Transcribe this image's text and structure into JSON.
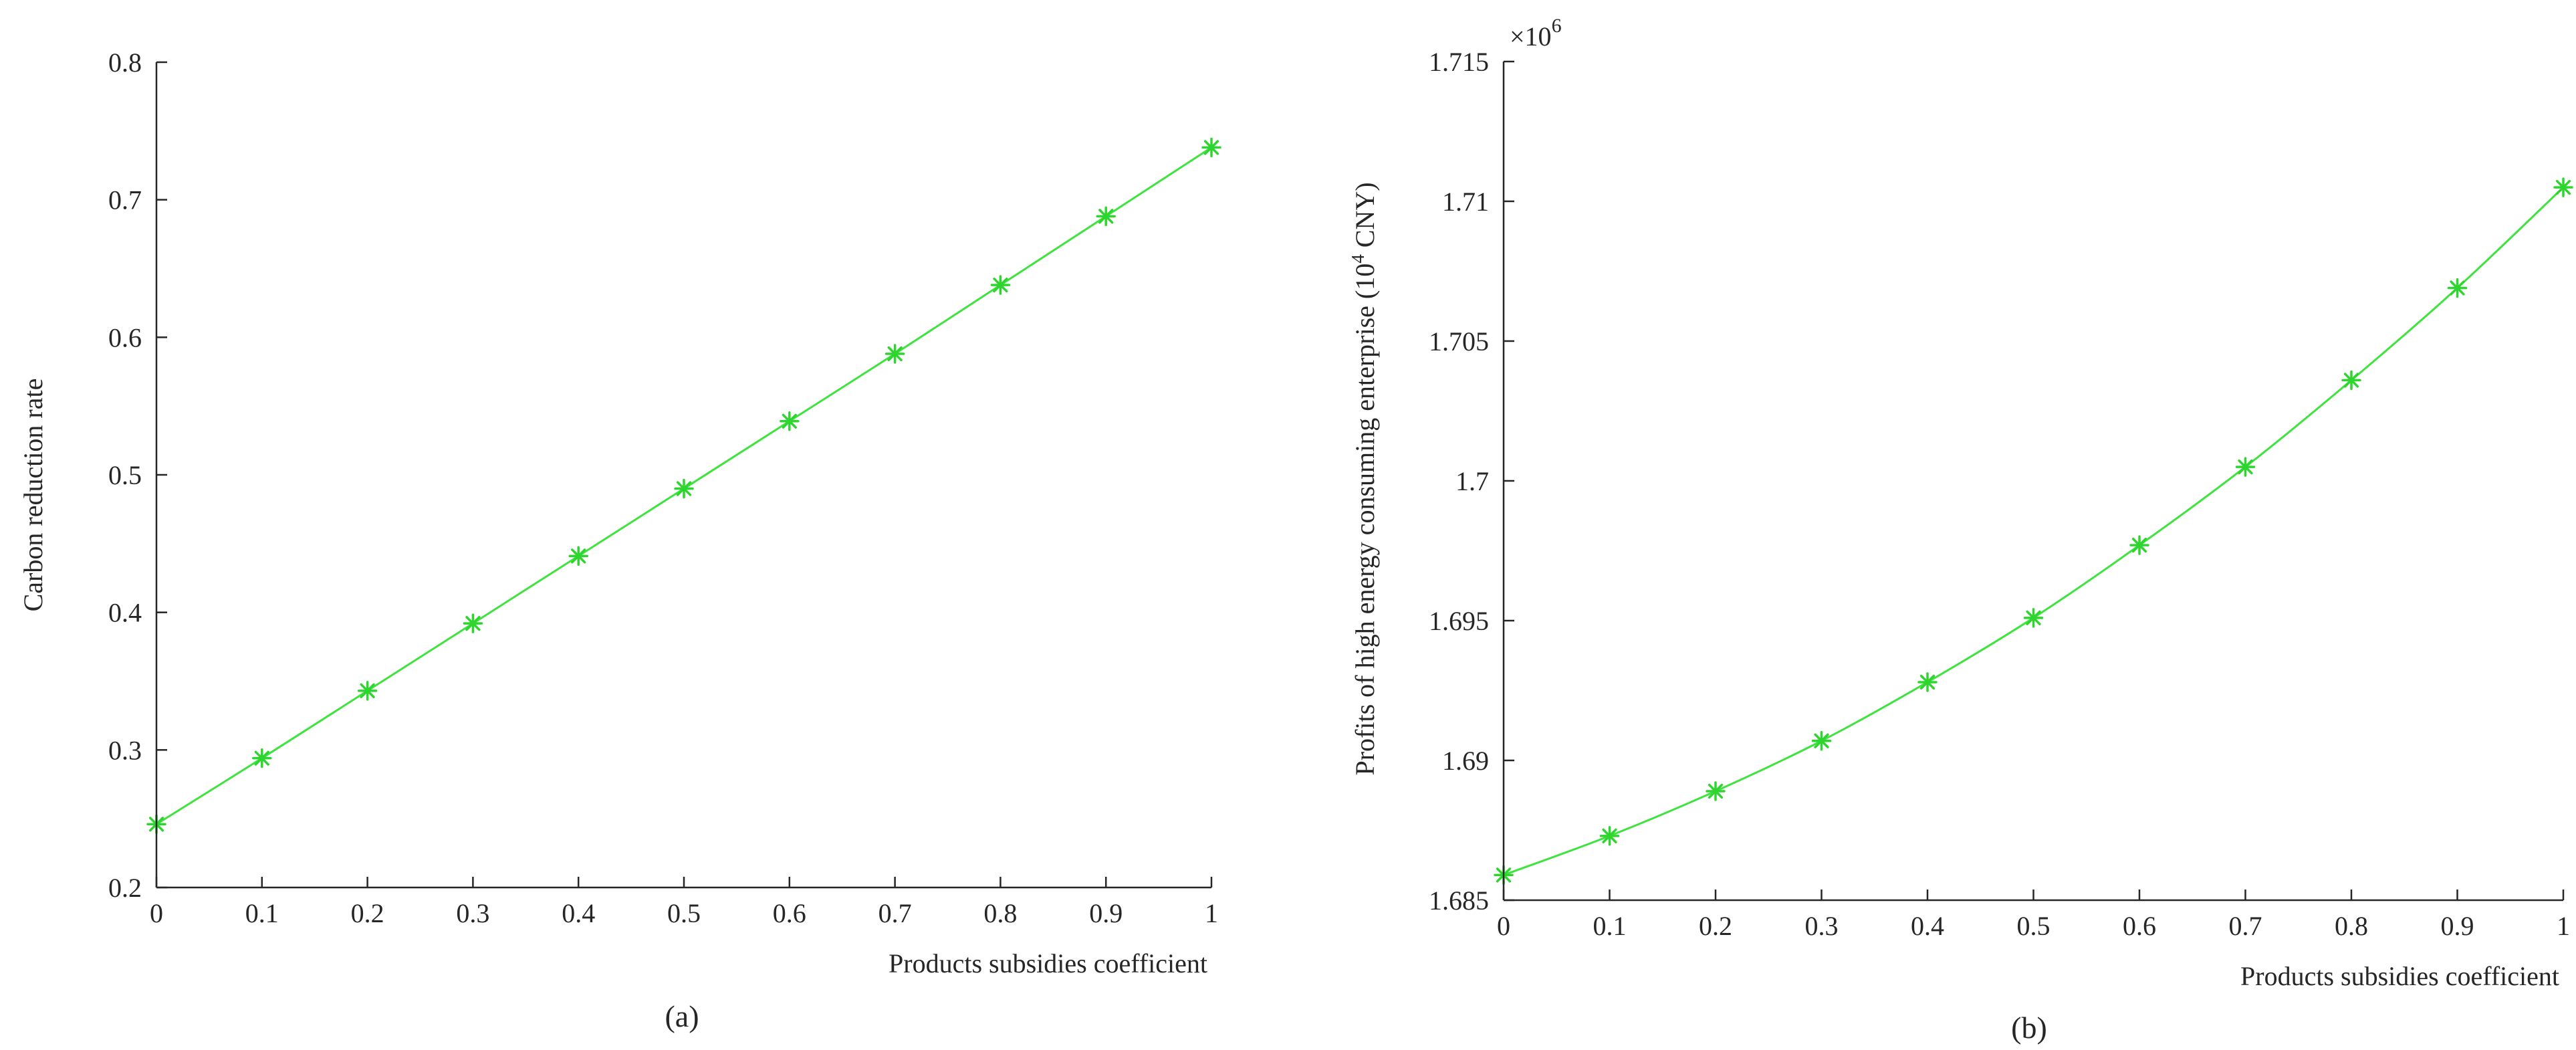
{
  "chart_data": [
    {
      "type": "line",
      "panel_label": "(a)",
      "xlabel": "Products subsidies coefficient",
      "ylabel": "Carbon reduction rate",
      "x": [
        0,
        0.1,
        0.2,
        0.3,
        0.4,
        0.5,
        0.6,
        0.7,
        0.8,
        0.9,
        1.0
      ],
      "series": [
        {
          "name": "Carbon reduction rate",
          "values": [
            0.246,
            0.294,
            0.343,
            0.392,
            0.441,
            0.49,
            0.539,
            0.588,
            0.638,
            0.688,
            0.738
          ]
        }
      ],
      "xlim": [
        0,
        1
      ],
      "ylim": [
        0.2,
        0.8
      ],
      "xticks": [
        0,
        0.1,
        0.2,
        0.3,
        0.4,
        0.5,
        0.6,
        0.7,
        0.8,
        0.9,
        1
      ],
      "yticks": [
        0.2,
        0.3,
        0.4,
        0.5,
        0.6,
        0.7,
        0.8
      ],
      "xtick_labels": [
        "0",
        "0.1",
        "0.2",
        "0.3",
        "0.4",
        "0.5",
        "0.6",
        "0.7",
        "0.8",
        "0.9",
        "1"
      ],
      "ytick_labels": [
        "0.2",
        "0.3",
        "0.4",
        "0.5",
        "0.6",
        "0.7",
        "0.8"
      ],
      "line_color": "#3ee33e",
      "marker": "asterisk",
      "grid": false
    },
    {
      "type": "line",
      "panel_label": "(b)",
      "xlabel": "Products subsidies coefficient",
      "ylabel_main": "Profits of high energy consuming enterprise (10",
      "ylabel_sup": "4",
      "ylabel_end": " CNY)",
      "multiplier_base": "×10",
      "multiplier_exp": "6",
      "x": [
        0,
        0.1,
        0.2,
        0.3,
        0.4,
        0.5,
        0.6,
        0.7,
        0.8,
        0.9,
        1.0
      ],
      "series": [
        {
          "name": "Profits",
          "values": [
            1.6859,
            1.6873,
            1.6889,
            1.6907,
            1.6928,
            1.6951,
            1.6977,
            1.7005,
            1.7036,
            1.7069,
            1.7105
          ]
        }
      ],
      "xlim": [
        0,
        1
      ],
      "ylim": [
        1.685,
        1.715
      ],
      "xticks": [
        0,
        0.1,
        0.2,
        0.3,
        0.4,
        0.5,
        0.6,
        0.7,
        0.8,
        0.9,
        1
      ],
      "yticks": [
        1.685,
        1.69,
        1.695,
        1.7,
        1.705,
        1.71,
        1.715
      ],
      "xtick_labels": [
        "0",
        "0.1",
        "0.2",
        "0.3",
        "0.4",
        "0.5",
        "0.6",
        "0.7",
        "0.8",
        "0.9",
        "1"
      ],
      "ytick_labels": [
        "1.685",
        "1.69",
        "1.695",
        "1.7",
        "1.705",
        "1.71",
        "1.715"
      ],
      "line_color": "#3ee33e",
      "marker": "asterisk",
      "grid": false
    }
  ]
}
